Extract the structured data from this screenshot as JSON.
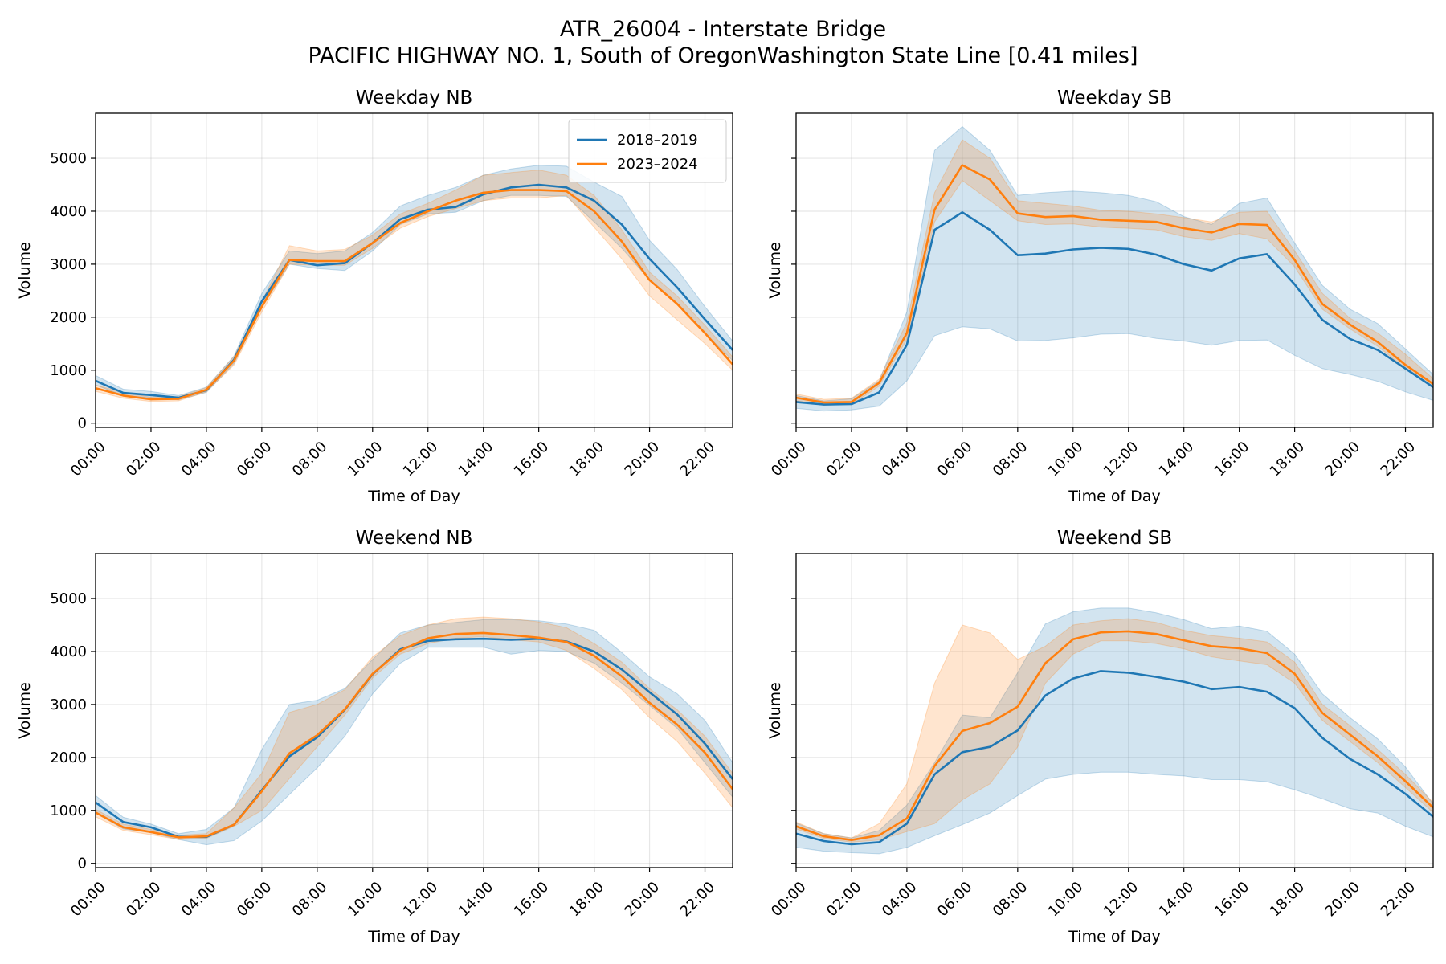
{
  "figure": {
    "title_line1": "ATR_26004 - Interstate Bridge",
    "title_line2": "PACIFIC HIGHWAY NO. 1, South of OregonWashington State Line [0.41 miles]"
  },
  "colors": {
    "series_2018_2019": "#1f77b4",
    "series_2023_2024": "#ff7f0e"
  },
  "legend": {
    "placement": "upper right of first panel",
    "entries": [
      "2018–2019",
      "2023–2024"
    ]
  },
  "chart_data": [
    {
      "type": "line",
      "title": "Weekday NB",
      "xlabel": "Time of Day",
      "ylabel": "Volume",
      "xlim": [
        0,
        23
      ],
      "ylim": [
        -80,
        5850
      ],
      "grid": true,
      "x_ticks": [
        "00:00",
        "02:00",
        "04:00",
        "06:00",
        "08:00",
        "10:00",
        "12:00",
        "14:00",
        "16:00",
        "18:00",
        "20:00",
        "22:00"
      ],
      "y_ticks": [
        0,
        1000,
        2000,
        3000,
        4000,
        5000
      ],
      "x": [
        0,
        1,
        2,
        3,
        4,
        5,
        6,
        7,
        8,
        9,
        10,
        11,
        12,
        13,
        14,
        15,
        16,
        17,
        18,
        19,
        20,
        21,
        22,
        23
      ],
      "series": [
        {
          "name": "2018–2019",
          "mean": [
            800,
            570,
            530,
            480,
            620,
            1200,
            2300,
            3080,
            2980,
            3020,
            3400,
            3850,
            4030,
            4080,
            4320,
            4450,
            4500,
            4450,
            4200,
            3750,
            3100,
            2560,
            1960,
            1380
          ],
          "lower": [
            720,
            520,
            480,
            440,
            580,
            1130,
            2180,
            3000,
            2920,
            2880,
            3250,
            3750,
            3950,
            3980,
            4200,
            4300,
            4300,
            4280,
            3800,
            3300,
            2700,
            2250,
            1700,
            1180
          ],
          "upper": [
            900,
            640,
            600,
            520,
            680,
            1270,
            2450,
            3250,
            3200,
            3250,
            3600,
            4100,
            4300,
            4450,
            4680,
            4800,
            4870,
            4850,
            4550,
            4280,
            3450,
            2900,
            2200,
            1550
          ]
        },
        {
          "name": "2023–2024",
          "mean": [
            660,
            520,
            450,
            460,
            630,
            1180,
            2200,
            3080,
            3060,
            3060,
            3400,
            3780,
            4000,
            4200,
            4350,
            4400,
            4400,
            4380,
            4000,
            3430,
            2700,
            2250,
            1700,
            1110
          ],
          "lower": [
            600,
            470,
            410,
            420,
            590,
            1100,
            2100,
            3000,
            2980,
            2980,
            3300,
            3680,
            3900,
            4050,
            4200,
            4250,
            4250,
            4300,
            3700,
            3100,
            2400,
            1950,
            1500,
            1000
          ],
          "upper": [
            720,
            580,
            490,
            500,
            670,
            1260,
            2300,
            3350,
            3250,
            3280,
            3550,
            3950,
            4150,
            4400,
            4680,
            4730,
            4780,
            4680,
            4300,
            3650,
            2850,
            2400,
            1850,
            1250
          ]
        }
      ]
    },
    {
      "type": "line",
      "title": "Weekday SB",
      "xlabel": "Time of Day",
      "ylabel": "Volume",
      "xlim": [
        0,
        23
      ],
      "ylim": [
        -80,
        5850
      ],
      "grid": true,
      "x_ticks": [
        "00:00",
        "02:00",
        "04:00",
        "06:00",
        "08:00",
        "10:00",
        "12:00",
        "14:00",
        "16:00",
        "18:00",
        "20:00",
        "22:00"
      ],
      "y_ticks": [
        0,
        1000,
        2000,
        3000,
        4000,
        5000
      ],
      "x": [
        0,
        1,
        2,
        3,
        4,
        5,
        6,
        7,
        8,
        9,
        10,
        11,
        12,
        13,
        14,
        15,
        16,
        17,
        18,
        19,
        20,
        21,
        22,
        23
      ],
      "series": [
        {
          "name": "2018–2019",
          "mean": [
            400,
            350,
            360,
            580,
            1480,
            3650,
            3980,
            3650,
            3170,
            3200,
            3280,
            3310,
            3290,
            3180,
            3000,
            2880,
            3110,
            3190,
            2620,
            1950,
            1590,
            1380,
            1030,
            680
          ],
          "lower": [
            280,
            230,
            250,
            320,
            800,
            1650,
            1820,
            1780,
            1550,
            1560,
            1610,
            1680,
            1690,
            1600,
            1550,
            1470,
            1560,
            1570,
            1280,
            1030,
            920,
            790,
            590,
            430
          ],
          "upper": [
            520,
            420,
            460,
            800,
            2100,
            5150,
            5600,
            5150,
            4300,
            4350,
            4380,
            4350,
            4300,
            4180,
            3900,
            3750,
            4150,
            4250,
            3400,
            2600,
            2150,
            1880,
            1400,
            920
          ]
        },
        {
          "name": "2023–2024",
          "mean": [
            480,
            390,
            400,
            760,
            1700,
            4030,
            4870,
            4600,
            3960,
            3890,
            3910,
            3840,
            3820,
            3800,
            3680,
            3600,
            3760,
            3740,
            3080,
            2250,
            1860,
            1530,
            1100,
            740
          ],
          "lower": [
            420,
            340,
            350,
            700,
            1580,
            3800,
            4580,
            4200,
            3820,
            3750,
            3760,
            3700,
            3680,
            3650,
            3520,
            3450,
            3580,
            3480,
            2950,
            2150,
            1780,
            1450,
            1030,
            690
          ],
          "upper": [
            550,
            450,
            470,
            830,
            1900,
            4350,
            5350,
            5000,
            4200,
            4150,
            4100,
            4020,
            4000,
            3950,
            3880,
            3800,
            3980,
            4000,
            3250,
            2450,
            1980,
            1700,
            1300,
            840
          ]
        }
      ]
    },
    {
      "type": "line",
      "title": "Weekend NB",
      "xlabel": "Time of Day",
      "ylabel": "Volume",
      "xlim": [
        0,
        23
      ],
      "ylim": [
        -80,
        5850
      ],
      "grid": true,
      "x_ticks": [
        "00:00",
        "02:00",
        "04:00",
        "06:00",
        "08:00",
        "10:00",
        "12:00",
        "14:00",
        "16:00",
        "18:00",
        "20:00",
        "22:00"
      ],
      "y_ticks": [
        0,
        1000,
        2000,
        3000,
        4000,
        5000
      ],
      "x": [
        0,
        1,
        2,
        3,
        4,
        5,
        6,
        7,
        8,
        9,
        10,
        11,
        12,
        13,
        14,
        15,
        16,
        17,
        18,
        19,
        20,
        21,
        22,
        23
      ],
      "series": [
        {
          "name": "2018–2019",
          "mean": [
            1150,
            780,
            680,
            500,
            500,
            730,
            1380,
            2020,
            2380,
            2900,
            3570,
            4040,
            4200,
            4230,
            4240,
            4220,
            4240,
            4190,
            4000,
            3660,
            3230,
            2810,
            2260,
            1590
          ],
          "lower": [
            950,
            650,
            580,
            450,
            350,
            430,
            800,
            1300,
            1800,
            2400,
            3200,
            3780,
            4080,
            4080,
            4080,
            3950,
            4020,
            4000,
            3780,
            3400,
            2980,
            2550,
            1900,
            1250
          ],
          "upper": [
            1280,
            870,
            740,
            560,
            640,
            1050,
            2150,
            3000,
            3080,
            3300,
            3850,
            4350,
            4500,
            4550,
            4600,
            4600,
            4580,
            4520,
            4400,
            3980,
            3520,
            3200,
            2700,
            1900
          ]
        },
        {
          "name": "2023–2024",
          "mean": [
            960,
            680,
            590,
            490,
            510,
            730,
            1360,
            2080,
            2420,
            2910,
            3580,
            4020,
            4250,
            4330,
            4350,
            4310,
            4260,
            4180,
            3920,
            3530,
            3030,
            2620,
            2090,
            1400
          ],
          "lower": [
            880,
            620,
            540,
            450,
            470,
            700,
            1000,
            1600,
            2200,
            2800,
            3500,
            3950,
            4150,
            4250,
            4280,
            4220,
            4180,
            4020,
            3680,
            3280,
            2750,
            2300,
            1700,
            1050
          ],
          "upper": [
            1020,
            740,
            640,
            530,
            560,
            1050,
            1700,
            2850,
            3000,
            3280,
            3900,
            4300,
            4500,
            4620,
            4650,
            4620,
            4560,
            4450,
            4150,
            3800,
            3300,
            2900,
            2400,
            1700
          ]
        }
      ]
    },
    {
      "type": "line",
      "title": "Weekend SB",
      "xlabel": "Time of Day",
      "ylabel": "Volume",
      "xlim": [
        0,
        23
      ],
      "ylim": [
        -80,
        5850
      ],
      "grid": true,
      "x_ticks": [
        "00:00",
        "02:00",
        "04:00",
        "06:00",
        "08:00",
        "10:00",
        "12:00",
        "14:00",
        "16:00",
        "18:00",
        "20:00",
        "22:00"
      ],
      "y_ticks": [
        0,
        1000,
        2000,
        3000,
        4000,
        5000
      ],
      "x": [
        0,
        1,
        2,
        3,
        4,
        5,
        6,
        7,
        8,
        9,
        10,
        11,
        12,
        13,
        14,
        15,
        16,
        17,
        18,
        19,
        20,
        21,
        22,
        23
      ],
      "series": [
        {
          "name": "2018–2019",
          "mean": [
            560,
            420,
            360,
            400,
            750,
            1680,
            2100,
            2200,
            2510,
            3170,
            3490,
            3630,
            3600,
            3520,
            3430,
            3290,
            3330,
            3240,
            2930,
            2370,
            1970,
            1680,
            1310,
            880
          ],
          "lower": [
            300,
            230,
            200,
            180,
            300,
            520,
            730,
            950,
            1280,
            1590,
            1680,
            1720,
            1720,
            1680,
            1650,
            1580,
            1580,
            1540,
            1390,
            1220,
            1030,
            950,
            700,
            500
          ],
          "upper": [
            760,
            560,
            480,
            620,
            1100,
            1900,
            2800,
            2750,
            3600,
            4520,
            4750,
            4820,
            4820,
            4730,
            4600,
            4430,
            4480,
            4380,
            3950,
            3200,
            2750,
            2350,
            1820,
            1120
          ]
        },
        {
          "name": "2023–2024",
          "mean": [
            700,
            510,
            440,
            530,
            850,
            1840,
            2500,
            2650,
            2960,
            3780,
            4230,
            4360,
            4380,
            4330,
            4210,
            4100,
            4060,
            3970,
            3580,
            2840,
            2430,
            2020,
            1550,
            1050
          ],
          "lower": [
            650,
            470,
            400,
            440,
            600,
            750,
            1200,
            1500,
            2200,
            3400,
            3950,
            4200,
            4200,
            4150,
            4050,
            3900,
            3820,
            3750,
            3400,
            2700,
            2300,
            1900,
            1430,
            960
          ],
          "upper": [
            780,
            560,
            480,
            750,
            1500,
            3400,
            4500,
            4350,
            3850,
            4100,
            4500,
            4580,
            4620,
            4550,
            4400,
            4300,
            4250,
            4180,
            3800,
            3000,
            2600,
            2150,
            1680,
            1150
          ]
        }
      ]
    }
  ]
}
